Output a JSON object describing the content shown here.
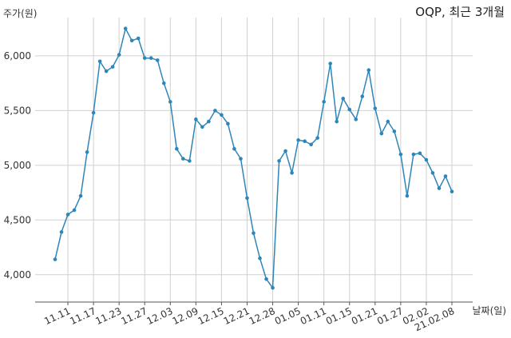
{
  "chart_data": {
    "type": "line",
    "title": "OQP, 최근 3개월",
    "ylabel": "주가(원)",
    "xlabel": "날짜(일)",
    "ylim": [
      3750,
      6350
    ],
    "yticks": [
      4000,
      4500,
      5000,
      5500,
      6000
    ],
    "ytick_labels": [
      "4,000",
      "4,500",
      "5,000",
      "5,500",
      "6,000"
    ],
    "xtick_labels": [
      "11.11",
      "11.17",
      "11.23",
      "11.27",
      "12.03",
      "12.09",
      "12.15",
      "12.21",
      "12.28",
      "01.05",
      "01.11",
      "01.15",
      "01.21",
      "01.27",
      "02.02",
      "21.02.08"
    ],
    "xtick_index": [
      2,
      6,
      10,
      14,
      18,
      22,
      26,
      30,
      34,
      38,
      42,
      46,
      50,
      54,
      58,
      62
    ],
    "grid": true,
    "series": [
      {
        "color": "#2e86b8",
        "values": [
          4140,
          4390,
          4550,
          4590,
          4720,
          5120,
          5480,
          5950,
          5860,
          5900,
          6010,
          6250,
          6140,
          6160,
          5980,
          5980,
          5960,
          5750,
          5580,
          5150,
          5060,
          5040,
          5420,
          5350,
          5400,
          5500,
          5460,
          5380,
          5150,
          5060,
          4700,
          4380,
          4150,
          3960,
          3880,
          5040,
          5130,
          4930,
          5230,
          5220,
          5190,
          5250,
          5580,
          5930,
          5400,
          5610,
          5510,
          5420,
          5630,
          5870,
          5520,
          5290,
          5400,
          5310,
          5100,
          4720,
          5100,
          5110,
          5050,
          4930,
          4790,
          4900,
          4760
        ]
      }
    ]
  }
}
